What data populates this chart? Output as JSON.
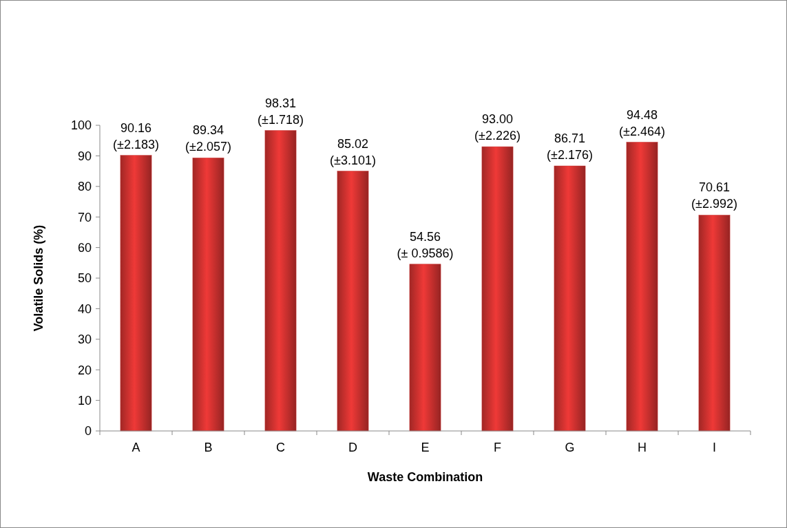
{
  "chart_data": {
    "type": "bar",
    "xlabel": "Waste Combination",
    "ylabel": "Volatile Solids (%)",
    "categories": [
      "A",
      "B",
      "C",
      "D",
      "E",
      "F",
      "G",
      "H",
      "I"
    ],
    "values": [
      90.16,
      89.34,
      98.31,
      85.02,
      54.56,
      93.0,
      86.71,
      94.48,
      70.61
    ],
    "value_labels": [
      "90.16\n(±2.183)",
      "89.34\n(±2.057)",
      "98.31\n(±1.718)",
      "85.02\n(±3.101)",
      "54.56\n(± 0.9586)",
      "93.00\n(±2.226)",
      "86.71\n(±2.176)",
      "94.48\n(±2.464)",
      "70.61\n(±2.992)"
    ],
    "color": "#c8302e",
    "ylim": [
      0,
      100
    ],
    "yticks": [
      0,
      10,
      20,
      30,
      40,
      50,
      60,
      70,
      80,
      90,
      100
    ],
    "grid": false
  }
}
